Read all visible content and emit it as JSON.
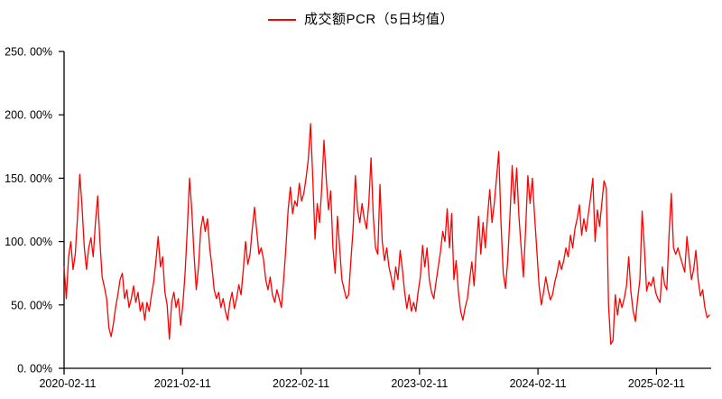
{
  "legend": {
    "label": "成交额PCR（5日均值）",
    "line_color": "#fe0000"
  },
  "chart_data": {
    "type": "line",
    "title": "成交额PCR（5日均值）",
    "grid": false,
    "background": "#ffffff",
    "legend_position": "top-center",
    "x_axis": {
      "tick_labels": [
        "2020-02-11",
        "2021-02-11",
        "2022-02-11",
        "2023-02-11",
        "2024-02-11",
        "2025-02-11"
      ],
      "tick_interval": "1 year"
    },
    "y_axis": {
      "tick_labels_top_down": [
        "250. 00%",
        "200. 00%",
        "150. 00%",
        "100. 00%",
        "50. 00%",
        "0. 00%"
      ],
      "ticks": [
        0,
        50,
        100,
        150,
        200,
        250
      ],
      "unit": "%",
      "range": [
        0,
        250
      ]
    },
    "series": [
      {
        "name": "成交额PCR（5日均值）",
        "color": "#fe0000",
        "unit": "%",
        "sampling": "weekly",
        "x_start": "2020-02-11",
        "values": [
          80,
          55,
          88,
          100,
          78,
          90,
          120,
          153,
          128,
          96,
          78,
          95,
          103,
          88,
          115,
          136,
          100,
          72,
          64,
          55,
          32,
          25,
          35,
          48,
          58,
          70,
          75,
          55,
          62,
          48,
          55,
          65,
          52,
          60,
          45,
          52,
          38,
          52,
          45,
          58,
          68,
          85,
          104,
          80,
          88,
          60,
          50,
          23,
          52,
          60,
          48,
          55,
          34,
          50,
          75,
          110,
          150,
          125,
          90,
          62,
          80,
          110,
          120,
          108,
          118,
          95,
          80,
          62,
          55,
          60,
          48,
          55,
          45,
          38,
          52,
          60,
          47,
          55,
          66,
          58,
          78,
          100,
          82,
          90,
          110,
          127,
          108,
          90,
          95,
          86,
          70,
          62,
          72,
          58,
          52,
          62,
          55,
          48,
          70,
          95,
          125,
          143,
          122,
          132,
          128,
          146,
          132,
          138,
          150,
          165,
          193,
          150,
          102,
          130,
          115,
          142,
          180,
          150,
          125,
          140,
          95,
          75,
          120,
          95,
          70,
          62,
          55,
          58,
          85,
          110,
          152,
          125,
          115,
          130,
          118,
          110,
          130,
          166,
          120,
          95,
          90,
          145,
          100,
          85,
          95,
          80,
          72,
          62,
          80,
          70,
          93,
          78,
          60,
          47,
          58,
          45,
          52,
          45,
          60,
          72,
          97,
          80,
          95,
          70,
          60,
          55,
          68,
          80,
          92,
          108,
          100,
          126,
          95,
          122,
          70,
          85,
          60,
          45,
          38,
          48,
          55,
          70,
          84,
          65,
          95,
          120,
          90,
          115,
          95,
          120,
          141,
          115,
          130,
          150,
          171,
          115,
          75,
          63,
          85,
          120,
          160,
          130,
          158,
          120,
          95,
          72,
          110,
          152,
          130,
          150,
          120,
          93,
          65,
          50,
          60,
          72,
          62,
          54,
          58,
          68,
          75,
          85,
          78,
          85,
          95,
          88,
          105,
          95,
          110,
          118,
          129,
          105,
          118,
          108,
          122,
          135,
          150,
          100,
          125,
          112,
          130,
          148,
          142,
          50,
          19,
          22,
          58,
          42,
          55,
          48,
          55,
          65,
          88,
          60,
          45,
          37,
          55,
          70,
          124,
          95,
          61,
          68,
          65,
          72,
          60,
          55,
          52,
          80,
          66,
          62,
          105,
          138,
          95,
          90,
          95,
          88,
          82,
          76,
          104,
          86,
          70,
          78,
          93,
          70,
          57,
          62,
          48,
          40,
          42
        ]
      }
    ]
  }
}
